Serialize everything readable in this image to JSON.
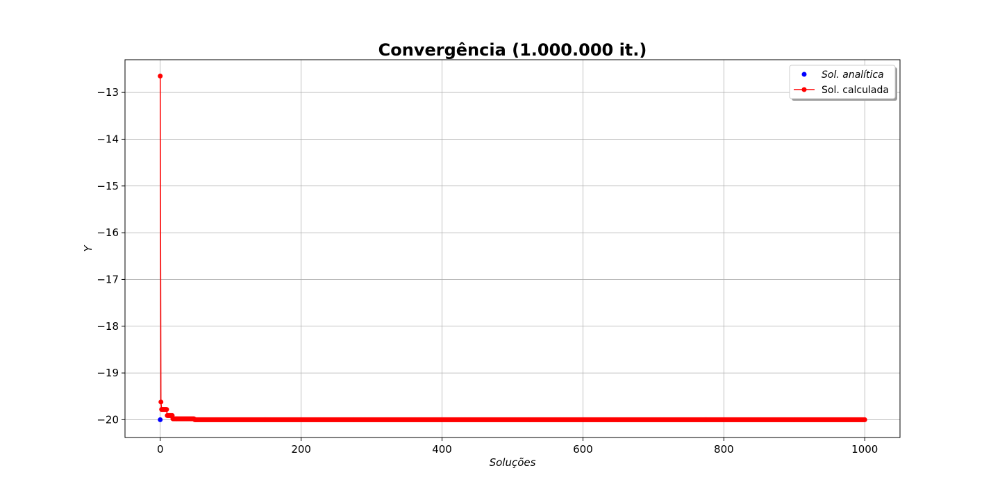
{
  "chart_data": {
    "type": "line",
    "title": "Convergência (1.000.000 it.)",
    "xlabel": "Soluções",
    "ylabel": "Y",
    "xlim": [
      -50,
      1050
    ],
    "ylim": [
      -20.38,
      -12.3
    ],
    "xticks": [
      0,
      200,
      400,
      600,
      800,
      1000
    ],
    "xtick_labels": [
      "0",
      "200",
      "400",
      "600",
      "800",
      "1000"
    ],
    "yticks": [
      -13,
      -14,
      -15,
      -16,
      -17,
      -18,
      -19,
      -20
    ],
    "ytick_labels": [
      "−13",
      "−14",
      "−15",
      "−16",
      "−17",
      "−18",
      "−19",
      "−20"
    ],
    "grid": true,
    "legend_position": "top-right",
    "series": [
      {
        "name": "Sol. analítica",
        "style": "marker",
        "color": "#0000ff",
        "x": [
          0
        ],
        "y": [
          -20
        ]
      },
      {
        "name": "Sol. calculada",
        "style": "line-marker",
        "color": "#ff0000",
        "segments": [
          {
            "x_start": 0,
            "x_end": 0,
            "y": -12.65
          },
          {
            "x_start": 1,
            "x_end": 1,
            "y": -19.62
          },
          {
            "x_start": 2,
            "x_end": 9,
            "y": -19.78
          },
          {
            "x_start": 10,
            "x_end": 17,
            "y": -19.91
          },
          {
            "x_start": 18,
            "x_end": 48,
            "y": -19.98
          },
          {
            "x_start": 49,
            "x_end": 1000,
            "y": -20.0
          }
        ]
      }
    ]
  }
}
